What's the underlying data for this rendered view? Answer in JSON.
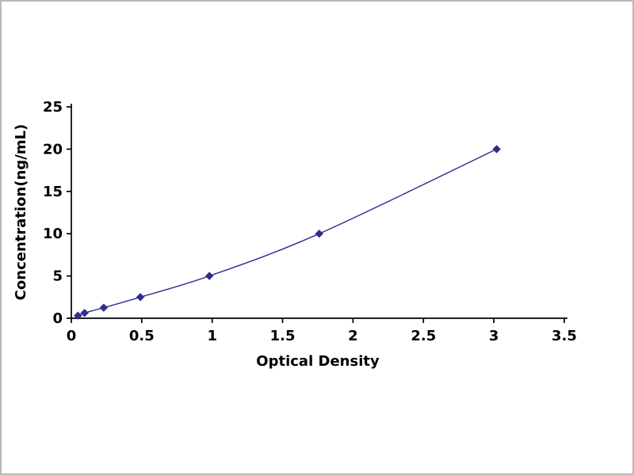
{
  "page": {
    "background_color": "#ffffff",
    "border_color": "#b9b9b9"
  },
  "chart_data": {
    "type": "line",
    "title": "",
    "xlabel": "Optical Density",
    "ylabel": "Concentration(ng/mL)",
    "x": [
      0.047,
      0.094,
      0.23,
      0.49,
      0.98,
      1.76,
      3.02
    ],
    "y": [
      0.31,
      0.63,
      1.25,
      2.5,
      5,
      10,
      20
    ],
    "xlim": [
      0,
      3.5
    ],
    "ylim": [
      0,
      25
    ],
    "xticks": [
      0,
      0.5,
      1,
      1.5,
      2,
      2.5,
      3,
      3.5
    ],
    "yticks": [
      0,
      5,
      10,
      15,
      20,
      25
    ],
    "grid": false,
    "legend": null,
    "line_color": "#2e2e8f",
    "marker": "diamond",
    "marker_color": "#2e2e8f",
    "axis_color": "#000000"
  }
}
